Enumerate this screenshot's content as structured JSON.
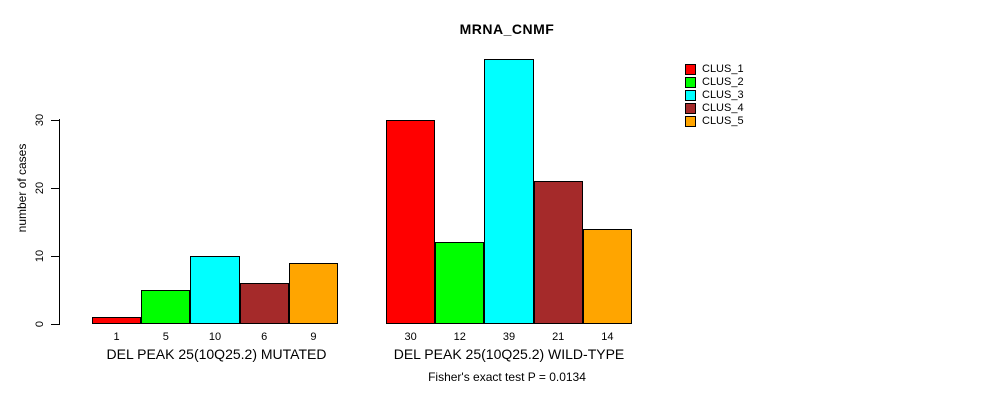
{
  "chart_data": {
    "type": "bar",
    "title": "MRNA_CNMF",
    "ylabel": "number of cases",
    "xlabel": "",
    "ylim": [
      0,
      39
    ],
    "yticks": [
      0,
      10,
      20,
      30
    ],
    "grid": false,
    "legend_position": "right",
    "categories": [
      "DEL PEAK 25(10Q25.2) MUTATED",
      "DEL PEAK 25(10Q25.2) WILD-TYPE"
    ],
    "series": [
      {
        "name": "CLUS_1",
        "color": "#ff0000",
        "values": [
          1,
          30
        ]
      },
      {
        "name": "CLUS_2",
        "color": "#00ff00",
        "values": [
          5,
          12
        ]
      },
      {
        "name": "CLUS_3",
        "color": "#00ffff",
        "values": [
          10,
          39
        ]
      },
      {
        "name": "CLUS_4",
        "color": "#a52a2a",
        "values": [
          6,
          21
        ]
      },
      {
        "name": "CLUS_5",
        "color": "#ffa500",
        "values": [
          9,
          14
        ]
      }
    ],
    "bar_value_labels": {
      "mutated": [
        1,
        5,
        10,
        6,
        9
      ],
      "wild_type": [
        30,
        12,
        39,
        21,
        14
      ]
    },
    "annotation": "Fisher's exact test P = 0.0134"
  },
  "colors": {
    "background": "#ffffff",
    "axis": "#000000",
    "text": "#000000",
    "bar_border": "#000000"
  }
}
